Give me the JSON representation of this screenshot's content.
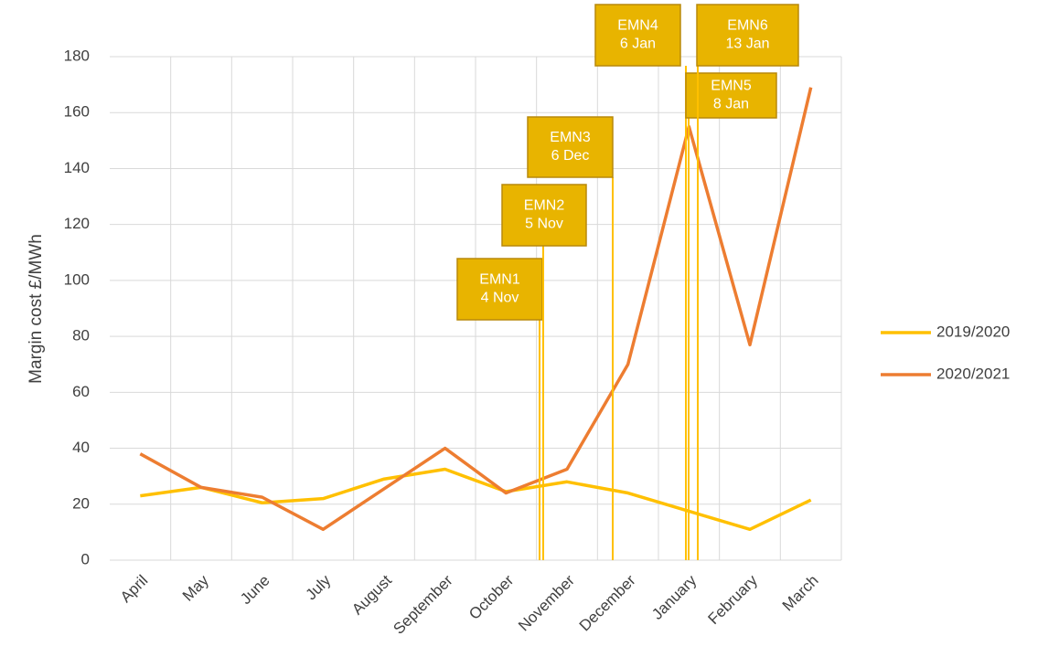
{
  "chart_data": {
    "type": "line",
    "y_label": "Margin cost £/MWh",
    "categories": [
      "April",
      "May",
      "June",
      "July",
      "August",
      "September",
      "October",
      "November",
      "December",
      "January",
      "February",
      "March"
    ],
    "series": [
      {
        "name": "2019/2020",
        "color": "#ffc000",
        "values": [
          23,
          26,
          20.5,
          22,
          29,
          32.5,
          24.5,
          28,
          24,
          17.5,
          11,
          21.5
        ]
      },
      {
        "name": "2020/2021",
        "color": "#ed7d31",
        "values": [
          38,
          26,
          22.5,
          11,
          25.5,
          40,
          24,
          32.5,
          70,
          155,
          77,
          169
        ]
      }
    ],
    "ylim": [
      0,
      180
    ],
    "yticks": [
      0,
      20,
      40,
      60,
      80,
      100,
      120,
      140,
      160,
      180
    ],
    "grid": true,
    "legend": "right",
    "annotations": [
      {
        "name": "EMN1",
        "date": "4 Nov"
      },
      {
        "name": "EMN2",
        "date": "5 Nov"
      },
      {
        "name": "EMN3",
        "date": "6 Dec"
      },
      {
        "name": "EMN4",
        "date": "6 Jan"
      },
      {
        "name": "EMN5",
        "date": "8 Jan"
      },
      {
        "name": "EMN6",
        "date": "13 Jan"
      }
    ]
  }
}
